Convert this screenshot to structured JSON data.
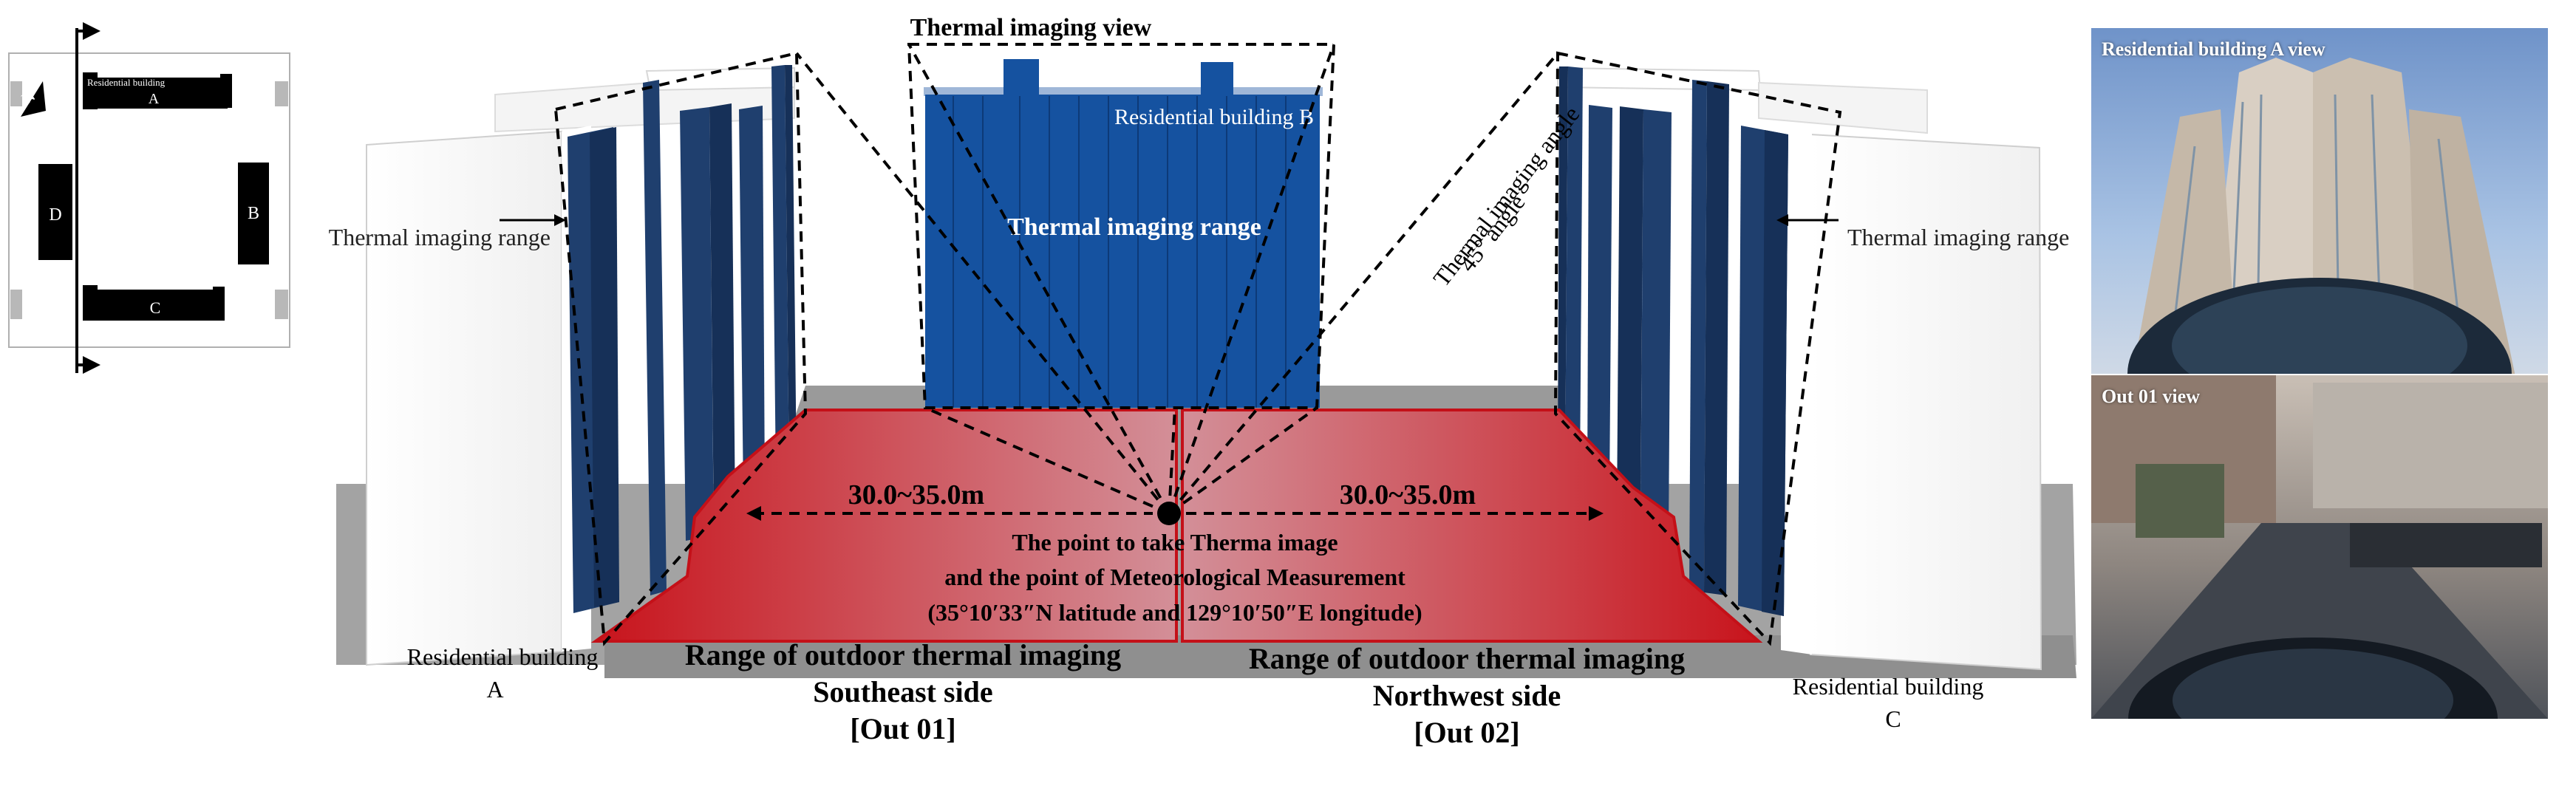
{
  "inset_map": {
    "north_symbol": "N",
    "north_icon": "north-arrow-icon",
    "building_a_label": "Residential building",
    "building_a_letter": "A",
    "building_b_letter": "B",
    "building_c_letter": "C",
    "building_d_letter": "D"
  },
  "scene": {
    "view_label": "Thermal imaging view",
    "building_b_label": "Residential building B",
    "center_range_label": "Thermal imaging range",
    "left_range_label": "Thermal imaging range",
    "right_range_label": "Thermal imaging range",
    "angle_label_1": "Thermal imaging angle",
    "angle_label_2": "45° angle",
    "dist_left": "30.0~35.0m",
    "dist_right": "30.0~35.0m",
    "point_line1": "The point to take Therma image",
    "point_line2": "and the point of Meteorological Measurement",
    "point_line3": "(35°10′33″N latitude and 129°10′50″E longitude)",
    "building_a_line1": "Residential building",
    "building_a_line2": "A",
    "building_c_line1": "Residential building",
    "building_c_line2": "C",
    "southeast_line1": "Range of outdoor thermal imaging",
    "southeast_line2": "Southeast side",
    "southeast_line3": "[Out 01]",
    "northwest_line1": "Range of outdoor thermal imaging",
    "northwest_line2": "Northwest side",
    "northwest_line3": "[Out 02]"
  },
  "photos": {
    "top_label": "Residential building A  view",
    "bottom_label": "Out 01 view"
  },
  "colors": {
    "facade_blue": "#1f3f6e",
    "bright_blue": "#1552a0",
    "red_zone": "#cc1c22",
    "ground": "#a3a3a3"
  }
}
